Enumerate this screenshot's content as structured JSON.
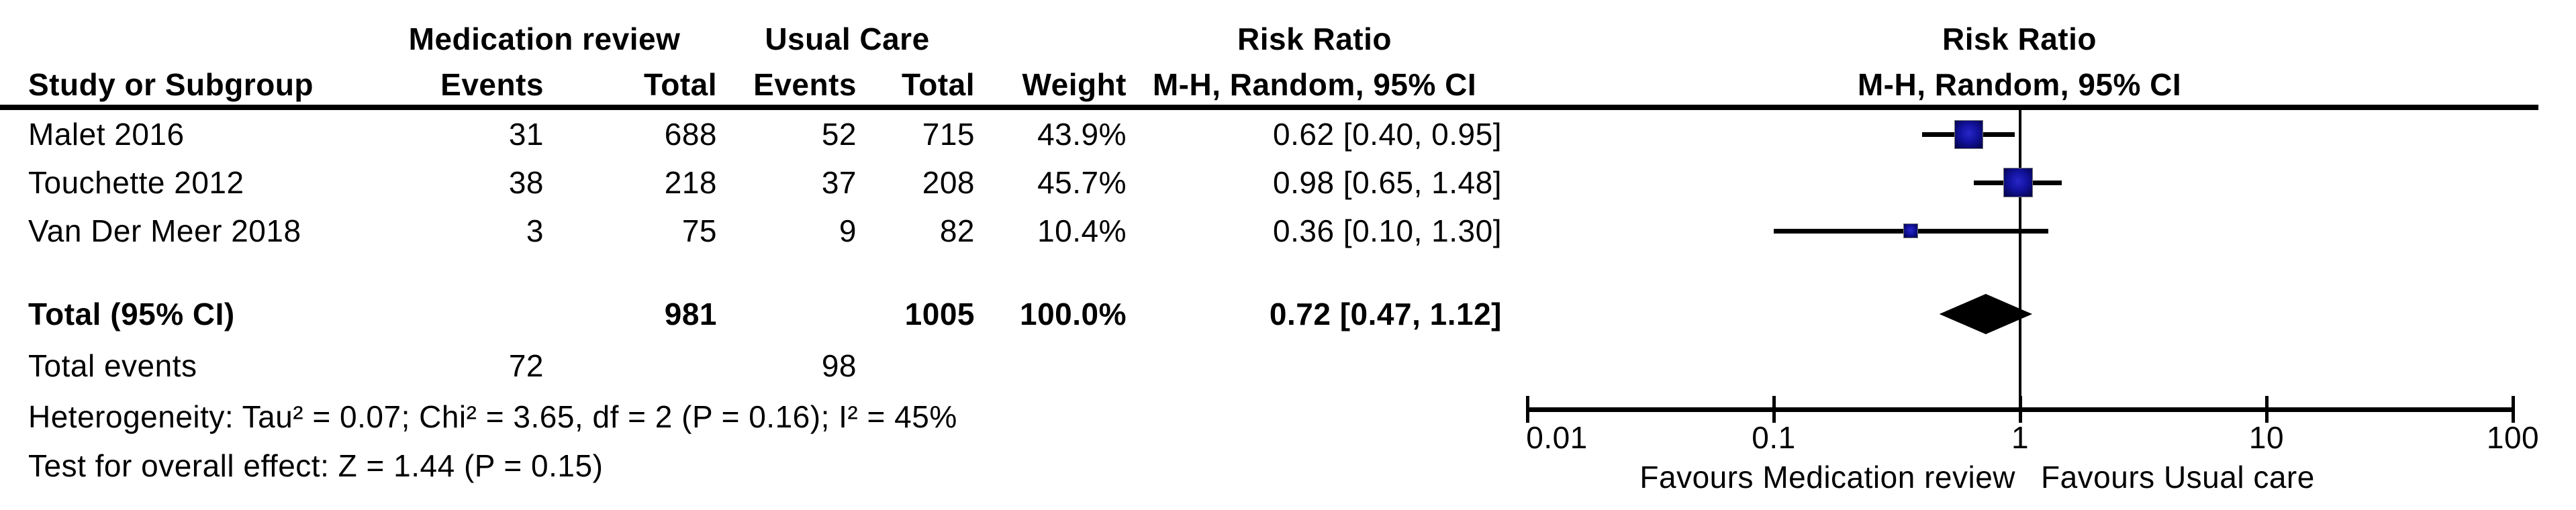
{
  "table": {
    "col_headers": {
      "group1": "Medication review",
      "group2": "Usual Care",
      "study": "Study or Subgroup",
      "events1": "Events",
      "total1": "Total",
      "events2": "Events",
      "total2": "Total",
      "weight": "Weight",
      "rr_line1": "Risk Ratio",
      "rr_line2": "M-H, Random, 95% CI"
    },
    "rows": [
      {
        "study": "Malet 2016",
        "events1": "31",
        "total1": "688",
        "events2": "52",
        "total2": "715",
        "weight": "43.9%",
        "rr_text": "0.62 [0.40, 0.95]"
      },
      {
        "study": "Touchette 2012",
        "events1": "38",
        "total1": "218",
        "events2": "37",
        "total2": "208",
        "weight": "45.7%",
        "rr_text": "0.98 [0.65, 1.48]"
      },
      {
        "study": "Van Der Meer 2018",
        "events1": "3",
        "total1": "75",
        "events2": "9",
        "total2": "82",
        "weight": "10.4%",
        "rr_text": "0.36 [0.10, 1.30]"
      }
    ],
    "total_row": {
      "label": "Total (95% CI)",
      "total1": "981",
      "total2": "1005",
      "weight": "100.0%",
      "rr_text": "0.72 [0.47, 1.12]"
    },
    "total_events_row": {
      "label": "Total events",
      "events1": "72",
      "events2": "98"
    },
    "heterogeneity": "Heterogeneity: Tau² = 0.07; Chi² = 3.65, df = 2 (P = 0.16); I² = 45%",
    "overall_effect": "Test for overall effect: Z = 1.44 (P = 0.15)"
  },
  "plot": {
    "header_line1": "Risk Ratio",
    "header_line2": "M-H, Random, 95% CI",
    "axis_tick_labels": [
      "0.01",
      "0.1",
      "1",
      "10",
      "100"
    ],
    "favours_left": "Favours Medication review",
    "favours_right": "Favours Usual care",
    "colors": {
      "square_center": "#2727c8",
      "square_mid": "#12129e",
      "square_edge": "#020240",
      "ci_line": "#000000",
      "diamond": "#000000",
      "axis": "#000000"
    }
  },
  "chart_data": {
    "type": "forest",
    "effect_measure": "Risk Ratio (M-H, Random, 95% CI)",
    "x_scale": "log10",
    "x_ticks": [
      0.01,
      0.1,
      1,
      10,
      100
    ],
    "studies": [
      {
        "name": "Malet 2016",
        "rr": 0.62,
        "ci_low": 0.4,
        "ci_high": 0.95,
        "weight_pct": 43.9
      },
      {
        "name": "Touchette 2012",
        "rr": 0.98,
        "ci_low": 0.65,
        "ci_high": 1.48,
        "weight_pct": 45.7
      },
      {
        "name": "Van Der Meer 2018",
        "rr": 0.36,
        "ci_low": 0.1,
        "ci_high": 1.3,
        "weight_pct": 10.4
      }
    ],
    "total": {
      "rr": 0.72,
      "ci_low": 0.47,
      "ci_high": 1.12,
      "weight_pct": 100.0
    },
    "totals": {
      "events1": 72,
      "n1": 981,
      "events2": 98,
      "n2": 1005
    },
    "heterogeneity": {
      "tau2": 0.07,
      "chi2": 3.65,
      "df": 2,
      "p": 0.16,
      "i2_pct": 45
    },
    "overall_effect": {
      "z": 1.44,
      "p": 0.15
    }
  }
}
